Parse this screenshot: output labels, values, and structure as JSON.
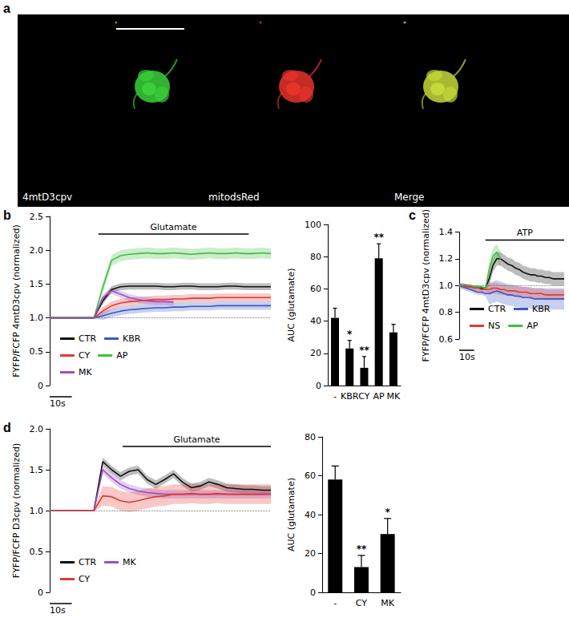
{
  "panel_a": {
    "panel": "a",
    "images": [
      {
        "label": "4mtD3cpv",
        "color": "#39d03a"
      },
      {
        "label": "mitodsRed",
        "color": "#e8322c"
      },
      {
        "label": "Merge",
        "color": "#c6d83a"
      }
    ]
  },
  "chart_data": [
    {
      "panel": "b",
      "type": "line",
      "x": [
        0,
        4,
        8,
        12,
        16,
        20,
        24,
        28,
        32,
        36,
        40,
        44,
        48,
        52,
        56,
        60,
        64,
        68,
        72,
        76,
        80,
        84,
        88,
        92,
        96,
        100
      ],
      "xlim": [
        0,
        100
      ],
      "ylim": [
        0,
        2.5
      ],
      "yticks": [
        0,
        0.5,
        {
          "value": 1,
          "label": "1.0"
        },
        1.5,
        {
          "value": 2,
          "label": "2.0"
        },
        2.5
      ],
      "y_label": "FYFP/FCFP 4mtD3cpv (normalized)",
      "tick_labels": "y",
      "legend": "bottom-left",
      "reference_line": 1,
      "stimulus": {
        "label": "Glutamate",
        "x": [
          22,
          90
        ]
      },
      "scale_bar": {
        "label": "10s",
        "value": 10
      },
      "series": [
        {
          "name": "CTR",
          "color": "#111111",
          "values": [
            1,
            1,
            1,
            1,
            1,
            1,
            1.25,
            1.42,
            1.46,
            1.47,
            1.47,
            1.47,
            1.47,
            1.46,
            1.46,
            1.47,
            1.47,
            1.46,
            1.46,
            1.46,
            1.47,
            1.47,
            1.46,
            1.46,
            1.46,
            1.46
          ],
          "error": [
            0.01,
            0.01,
            0.01,
            0.01,
            0.01,
            0.01,
            0.05,
            0.05,
            0.05,
            0.05,
            0.05,
            0.05,
            0.05,
            0.05,
            0.05,
            0.05,
            0.05,
            0.05,
            0.05,
            0.05,
            0.05,
            0.05,
            0.05,
            0.05,
            0.05,
            0.05
          ]
        },
        {
          "name": "KBR",
          "color": "#3b57c4",
          "values": [
            1,
            1,
            1,
            1,
            1,
            1,
            1.03,
            1.07,
            1.1,
            1.12,
            1.13,
            1.14,
            1.15,
            1.15,
            1.16,
            1.16,
            1.17,
            1.17,
            1.17,
            1.18,
            1.18,
            1.18,
            1.18,
            1.18,
            1.18,
            1.18
          ],
          "error": [
            0.01,
            0.01,
            0.01,
            0.01,
            0.01,
            0.01,
            0.06,
            0.06,
            0.06,
            0.06,
            0.06,
            0.06,
            0.06,
            0.06,
            0.06,
            0.06,
            0.06,
            0.06,
            0.06,
            0.06,
            0.06,
            0.06,
            0.06,
            0.06,
            0.06,
            0.06
          ]
        },
        {
          "name": "CY",
          "color": "#e03a35",
          "values": [
            1,
            1,
            1,
            1,
            1,
            1,
            1.1,
            1.18,
            1.22,
            1.24,
            1.25,
            1.26,
            1.27,
            1.27,
            1.28,
            1.28,
            1.29,
            1.29,
            1.29,
            1.3,
            1.3,
            1.3,
            1.3,
            1.3,
            1.3,
            1.3
          ],
          "error": [
            0.01,
            0.01,
            0.01,
            0.01,
            0.01,
            0.01,
            0.06,
            0.06,
            0.06,
            0.06,
            0.06,
            0.06,
            0.06,
            0.06,
            0.06,
            0.06,
            0.06,
            0.06,
            0.06,
            0.06,
            0.06,
            0.06,
            0.06,
            0.06,
            0.06,
            0.06
          ]
        },
        {
          "name": "AP",
          "color": "#3fbf3f",
          "values": [
            1,
            1,
            1,
            1,
            1,
            1,
            1.45,
            1.85,
            1.92,
            1.94,
            1.95,
            1.96,
            1.95,
            1.95,
            1.96,
            1.95,
            1.94,
            1.95,
            1.96,
            1.95,
            1.95,
            1.96,
            1.95,
            1.95,
            1.96,
            1.95
          ],
          "error": [
            0.01,
            0.01,
            0.01,
            0.01,
            0.01,
            0.01,
            0.08,
            0.08,
            0.08,
            0.08,
            0.08,
            0.08,
            0.08,
            0.08,
            0.08,
            0.08,
            0.08,
            0.08,
            0.08,
            0.08,
            0.08,
            0.08,
            0.08,
            0.08,
            0.08,
            0.08
          ]
        },
        {
          "name": "MK",
          "color": "#9b4fc1",
          "values": [
            1,
            1,
            1,
            1,
            1,
            1,
            1.3,
            1.4,
            1.35,
            1.3,
            1.27,
            1.25,
            1.24,
            1.24,
            1.23,
            null,
            null,
            null,
            null,
            null,
            null,
            null,
            null,
            null,
            null,
            null
          ],
          "error": [
            0.01,
            0.01,
            0.01,
            0.01,
            0.01,
            0.01,
            0.05,
            0.05,
            0.05,
            0.05,
            0.05,
            0.05,
            0.05,
            0.05,
            0.05,
            null,
            null,
            null,
            null,
            null,
            null,
            null,
            null,
            null,
            null,
            null
          ]
        }
      ]
    },
    {
      "type": "bar",
      "categories": [
        "-",
        "KBR",
        "CY",
        "AP",
        "MK"
      ],
      "values": [
        42,
        23,
        11,
        79,
        33
      ],
      "error": [
        6,
        5,
        7,
        9,
        5
      ],
      "significance": [
        null,
        "*",
        "**",
        "**",
        null
      ],
      "ylim": [
        0,
        100
      ],
      "yticks": [
        0,
        20,
        40,
        60,
        80,
        100
      ],
      "y_label": "AUC (glutamate)",
      "color": "#000000"
    },
    {
      "panel": "c",
      "type": "line",
      "x": [
        0,
        2.5,
        5,
        7.5,
        10,
        12.5,
        15,
        17.5,
        20,
        22.5,
        25,
        27.5,
        30,
        32.5,
        35,
        37.5,
        40,
        42.5,
        45,
        47.5,
        50,
        52.5,
        55,
        57.5,
        60,
        62.5,
        65,
        67.5,
        70
      ],
      "xlim": [
        0,
        70
      ],
      "ylim": [
        0.6,
        1.4
      ],
      "yticks": [
        0.6,
        0.8,
        {
          "value": 1,
          "label": "1.0"
        },
        1.2,
        1.4
      ],
      "y_label": "FYFP/FCFP 4mtD3cpv (normalized)",
      "tick_labels": "y",
      "legend": "bottom-left",
      "reference_line": 1,
      "stimulus": {
        "label": "ATP",
        "x": [
          17.5,
          70
        ]
      },
      "scale_bar": {
        "label": "10s",
        "value": 10
      },
      "series": [
        {
          "name": "CTR",
          "color": "#111111",
          "values": [
            1,
            1,
            1,
            0.99,
            0.99,
            0.99,
            0.98,
            0.98,
            1.05,
            1.15,
            1.2,
            1.2,
            1.18,
            1.16,
            1.15,
            1.13,
            1.12,
            1.1,
            1.09,
            1.08,
            1.08,
            1.07,
            1.07,
            1.06,
            1.06,
            1.05,
            1.05,
            1.05,
            1.05
          ],
          "error": [
            0.01,
            0.01,
            0.01,
            0.01,
            0.01,
            0.01,
            0.01,
            0.01,
            0.05,
            0.05,
            0.05,
            0.05,
            0.05,
            0.05,
            0.05,
            0.05,
            0.05,
            0.05,
            0.05,
            0.05,
            0.05,
            0.05,
            0.05,
            0.05,
            0.05,
            0.05,
            0.05,
            0.05,
            0.05
          ]
        },
        {
          "name": "KBR",
          "color": "#3b57c4",
          "values": [
            1,
            0.99,
            0.98,
            0.97,
            0.96,
            0.95,
            0.95,
            0.94,
            0.94,
            0.95,
            0.96,
            0.95,
            0.94,
            0.93,
            0.93,
            0.92,
            0.92,
            0.91,
            0.91,
            0.91,
            0.9,
            0.9,
            0.9,
            0.9,
            0.9,
            0.9,
            0.9,
            0.9,
            0.9
          ],
          "error": [
            0.02,
            0.02,
            0.02,
            0.02,
            0.02,
            0.02,
            0.02,
            0.02,
            0.08,
            0.08,
            0.08,
            0.08,
            0.08,
            0.08,
            0.08,
            0.08,
            0.08,
            0.08,
            0.08,
            0.08,
            0.08,
            0.08,
            0.08,
            0.08,
            0.08,
            0.08,
            0.08,
            0.08,
            0.08
          ]
        },
        {
          "name": "NS",
          "color": "#e03a35",
          "values": [
            1,
            1,
            0.99,
            0.99,
            0.98,
            0.98,
            0.97,
            0.97,
            0.97,
            0.98,
            0.98,
            0.97,
            0.97,
            0.96,
            0.96,
            0.96,
            0.95,
            0.95,
            0.95,
            0.94,
            0.94,
            0.94,
            0.94,
            0.93,
            0.93,
            0.93,
            0.93,
            0.93,
            0.93
          ],
          "error": [
            0.02,
            0.02,
            0.02,
            0.02,
            0.02,
            0.02,
            0.02,
            0.02,
            0.04,
            0.04,
            0.04,
            0.04,
            0.04,
            0.04,
            0.04,
            0.04,
            0.04,
            0.04,
            0.04,
            0.04,
            0.04,
            0.04,
            0.04,
            0.04,
            0.04,
            0.04,
            0.04,
            0.04,
            0.04
          ]
        },
        {
          "name": "AP",
          "color": "#3fbf3f",
          "values": [
            1,
            1,
            1,
            1,
            0.99,
            0.99,
            0.99,
            0.98,
            1.12,
            1.22,
            1.25,
            1.2,
            null,
            null,
            null,
            null,
            null,
            null,
            null,
            null,
            null,
            null,
            null,
            null,
            null,
            null,
            null,
            null,
            null
          ],
          "error": [
            0.01,
            0.01,
            0.01,
            0.01,
            0.01,
            0.01,
            0.01,
            0.01,
            0.06,
            0.06,
            0.06,
            0.06,
            null,
            null,
            null,
            null,
            null,
            null,
            null,
            null,
            null,
            null,
            null,
            null,
            null,
            null,
            null,
            null,
            null
          ]
        }
      ]
    },
    {
      "panel": "d",
      "type": "line",
      "x": [
        0,
        4,
        8,
        12,
        16,
        20,
        24,
        28,
        32,
        36,
        40,
        44,
        48,
        52,
        56,
        60,
        64,
        68,
        72,
        76,
        80,
        84,
        88,
        92,
        96,
        100
      ],
      "xlim": [
        0,
        100
      ],
      "ylim": [
        0,
        2
      ],
      "yticks": [
        0,
        0.5,
        {
          "value": 1,
          "label": "1.0"
        },
        1.5,
        {
          "value": 2,
          "label": "2.0"
        }
      ],
      "y_label": "FYFP/FCFP D3cpv (normalized)",
      "tick_labels": "y",
      "legend": "bottom-left",
      "reference_line": 1,
      "stimulus": {
        "label": "Glutamate",
        "x": [
          33,
          100
        ]
      },
      "scale_bar": {
        "label": "10s",
        "value": 10
      },
      "series": [
        {
          "name": "CTR",
          "color": "#111111",
          "values": [
            1,
            1,
            1,
            1,
            1,
            1,
            1.6,
            1.5,
            1.42,
            1.48,
            1.5,
            1.38,
            1.32,
            1.38,
            1.45,
            1.35,
            1.28,
            1.3,
            1.35,
            1.32,
            1.28,
            1.27,
            1.26,
            1.26,
            1.25,
            1.25
          ],
          "error": [
            0.01,
            0.01,
            0.01,
            0.01,
            0.01,
            0.01,
            0.05,
            0.05,
            0.05,
            0.05,
            0.05,
            0.05,
            0.05,
            0.05,
            0.05,
            0.05,
            0.05,
            0.05,
            0.05,
            0.05,
            0.05,
            0.05,
            0.05,
            0.05,
            0.05,
            0.05
          ]
        },
        {
          "name": "MK",
          "color": "#9b4fc1",
          "values": [
            1,
            1,
            1,
            1,
            1,
            1,
            1.5,
            1.4,
            1.32,
            1.27,
            1.24,
            1.22,
            1.21,
            1.2,
            1.2,
            1.2,
            1.2,
            1.2,
            1.2,
            1.2,
            1.2,
            1.2,
            1.2,
            1.2,
            1.2,
            1.2
          ],
          "error": [
            0.01,
            0.01,
            0.01,
            0.01,
            0.01,
            0.01,
            0.05,
            0.05,
            0.05,
            0.05,
            0.05,
            0.05,
            0.05,
            0.05,
            0.05,
            0.05,
            0.05,
            0.05,
            0.05,
            0.05,
            0.05,
            0.05,
            0.05,
            0.05,
            0.05,
            0.05
          ]
        },
        {
          "name": "CY",
          "color": "#e03a35",
          "values": [
            1,
            1,
            1,
            1,
            1,
            1,
            1.18,
            1.17,
            1.12,
            1.1,
            1.12,
            1.15,
            1.17,
            1.18,
            1.2,
            1.2,
            1.21,
            1.2,
            1.2,
            1.21,
            1.2,
            1.2,
            1.2,
            1.2,
            1.2,
            1.2
          ],
          "error": [
            0.01,
            0.01,
            0.01,
            0.01,
            0.01,
            0.01,
            0.12,
            0.12,
            0.12,
            0.12,
            0.12,
            0.12,
            0.12,
            0.12,
            0.12,
            0.12,
            0.12,
            0.12,
            0.12,
            0.12,
            0.12,
            0.12,
            0.12,
            0.12,
            0.12,
            0.12
          ]
        }
      ]
    },
    {
      "type": "bar",
      "categories": [
        "-",
        "CY",
        "MK"
      ],
      "values": [
        58,
        13,
        30
      ],
      "error": [
        7,
        6,
        8
      ],
      "significance": [
        null,
        "**",
        "*"
      ],
      "ylim": [
        0,
        80
      ],
      "yticks": [
        0,
        20,
        40,
        60,
        80
      ],
      "y_label": "AUC (glutamate)",
      "color": "#000000"
    }
  ]
}
